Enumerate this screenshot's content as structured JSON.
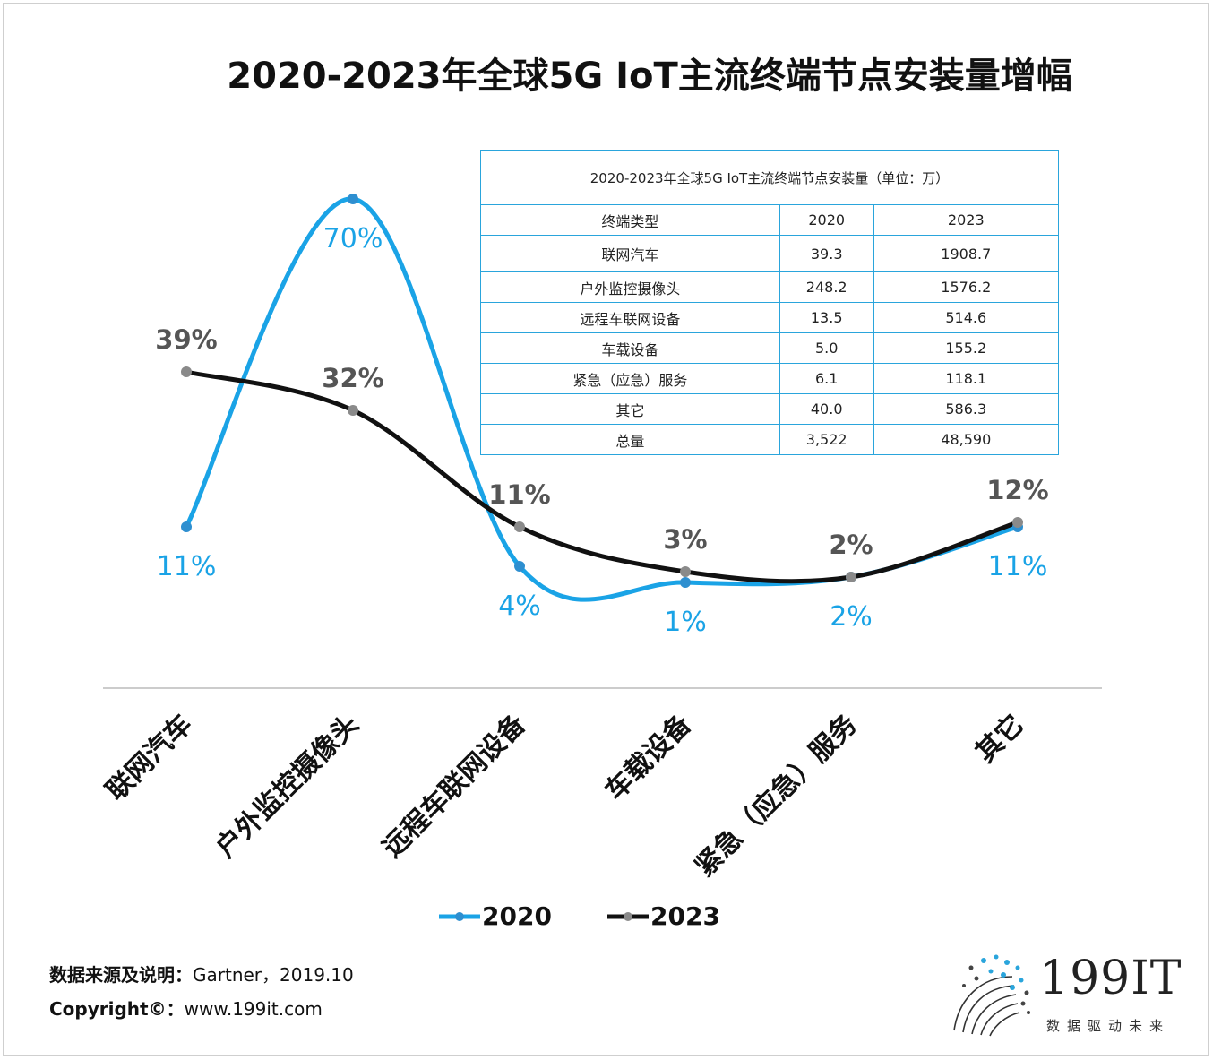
{
  "title": "2020-2023年全球5G IoT主流终端节点安装量增幅",
  "chart_data": {
    "type": "line",
    "categories": [
      "联网汽车",
      "户外监控摄像头",
      "远程车联网设备",
      "车载设备",
      "紧急（应急）服务",
      "其它"
    ],
    "series": [
      {
        "name": "2020",
        "values": [
          11,
          70,
          4,
          1,
          2,
          11
        ],
        "labels": [
          "11%",
          "70%",
          "4%",
          "1%",
          "2%",
          "11%"
        ],
        "color": "#1aa3e6"
      },
      {
        "name": "2023",
        "values": [
          39,
          32,
          11,
          3,
          2,
          12
        ],
        "labels": [
          "39%",
          "32%",
          "11%",
          "3%",
          "2%",
          "12%"
        ],
        "color": "#111111",
        "marker": "#8a8a8a"
      }
    ]
  },
  "table": {
    "caption": "2020-2023年全球5G IoT主流终端节点安装量（单位：万）",
    "headers": [
      "终端类型",
      "2020",
      "2023"
    ],
    "rows": [
      [
        "联网汽车",
        "39.3",
        "1908.7"
      ],
      [
        "户外监控摄像头",
        "248.2",
        "1576.2"
      ],
      [
        "远程车联网设备",
        "13.5",
        "514.6"
      ],
      [
        "车载设备",
        "5.0",
        "155.2"
      ],
      [
        "紧急（应急）服务",
        "6.1",
        "118.1"
      ],
      [
        "其它",
        "40.0",
        "586.3"
      ],
      [
        "总量",
        "3,522",
        "48,590"
      ]
    ]
  },
  "footer": {
    "source_label": "数据来源及说明：",
    "source_value": "Gartner，2019.10",
    "copyright_label": "Copyright©：",
    "copyright_value": "www.199it.com"
  },
  "logo": {
    "name": "199IT",
    "tagline": "数据驱动未来"
  }
}
